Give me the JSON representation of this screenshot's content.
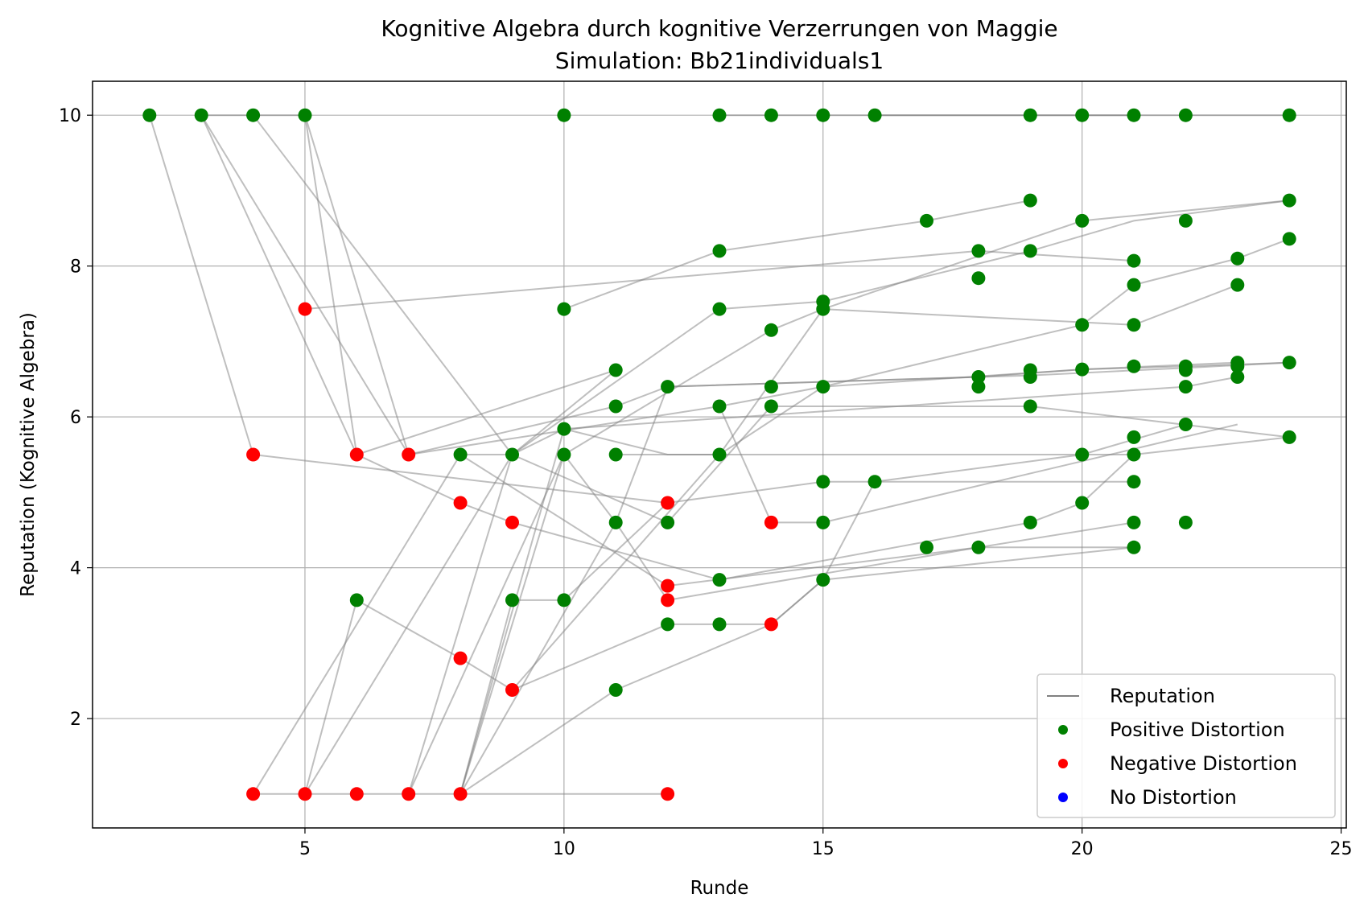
{
  "chart_data": {
    "type": "scatter",
    "title": "Kognitive Algebra durch kognitive Verzerrungen von Maggie",
    "subtitle": "Simulation: Bb21individuals1",
    "xlabel": "Runde",
    "ylabel": "Reputation (Kognitive Algebra)",
    "xlim": [
      0.9,
      25.1
    ],
    "ylim": [
      0.55,
      10.45
    ],
    "xticks": [
      5,
      10,
      15,
      20,
      25
    ],
    "yticks": [
      2,
      4,
      6,
      8,
      10
    ],
    "grid": true,
    "legend_position": "lower-right",
    "colors": {
      "line": "#808080",
      "positive": "#008000",
      "negative": "#ff0000",
      "none": "#0000ff"
    },
    "legend": [
      {
        "label": "Reputation",
        "kind": "line",
        "color": "#808080"
      },
      {
        "label": "Positive Distortion",
        "kind": "point",
        "color": "#008000"
      },
      {
        "label": "Negative Distortion",
        "kind": "point",
        "color": "#ff0000"
      },
      {
        "label": "No Distortion",
        "kind": "point",
        "color": "#0000ff"
      }
    ],
    "lines": [
      [
        [
          2,
          10
        ],
        [
          4,
          5.5
        ],
        [
          12,
          4.86
        ]
      ],
      [
        [
          3,
          10
        ],
        [
          6,
          5.5
        ],
        [
          8,
          4.86
        ],
        [
          9,
          4.6
        ]
      ],
      [
        [
          3,
          10
        ],
        [
          7,
          5.5
        ],
        [
          11,
          6.14
        ],
        [
          12,
          6.4
        ],
        [
          18,
          6.53
        ],
        [
          20,
          6.63
        ],
        [
          22,
          6.67
        ],
        [
          24,
          6.72
        ]
      ],
      [
        [
          3,
          10
        ],
        [
          5,
          10
        ],
        [
          6,
          5.5
        ],
        [
          11,
          6.62
        ]
      ],
      [
        [
          4,
          10
        ],
        [
          9,
          5.5
        ],
        [
          10,
          5.84
        ],
        [
          22,
          6.4
        ],
        [
          23,
          6.53
        ]
      ],
      [
        [
          5,
          10
        ],
        [
          7,
          5.5
        ],
        [
          13,
          6.14
        ],
        [
          14,
          4.6
        ],
        [
          15,
          4.6
        ],
        [
          23,
          5.9
        ]
      ],
      [
        [
          5,
          7.43
        ],
        [
          18,
          8.2
        ],
        [
          21,
          8.07
        ]
      ],
      [
        [
          10,
          7.43
        ],
        [
          13,
          8.2
        ],
        [
          17,
          8.6
        ],
        [
          19,
          8.87
        ]
      ],
      [
        [
          4,
          1
        ],
        [
          8,
          5.5
        ],
        [
          12,
          3.76
        ],
        [
          18,
          4.27
        ],
        [
          21,
          4.6
        ]
      ],
      [
        [
          6,
          3.57
        ],
        [
          8,
          2.8
        ],
        [
          9,
          2.38
        ],
        [
          12,
          3.25
        ],
        [
          14,
          3.25
        ],
        [
          15,
          3.84
        ],
        [
          16,
          5.14
        ],
        [
          20,
          5.5
        ],
        [
          22,
          5.9
        ]
      ],
      [
        [
          4,
          1
        ],
        [
          8,
          1
        ],
        [
          12,
          1
        ]
      ],
      [
        [
          5,
          1
        ],
        [
          6,
          3.57
        ]
      ],
      [
        [
          5,
          1
        ],
        [
          9,
          5.5
        ],
        [
          12,
          4.6
        ],
        [
          14,
          6.14
        ],
        [
          19,
          6.14
        ],
        [
          24,
          5.73
        ]
      ],
      [
        [
          7,
          1
        ],
        [
          9,
          5.5
        ],
        [
          13,
          7.43
        ],
        [
          15,
          7.53
        ],
        [
          19,
          8.2
        ],
        [
          21,
          8.6
        ],
        [
          24,
          8.87
        ]
      ],
      [
        [
          7,
          1
        ],
        [
          10,
          5.5
        ],
        [
          11,
          4.6
        ],
        [
          12,
          3.57
        ],
        [
          18,
          4.27
        ],
        [
          21,
          4.27
        ]
      ],
      [
        [
          8,
          1
        ],
        [
          10,
          5.5
        ],
        [
          14,
          7.15
        ],
        [
          15,
          7.43
        ],
        [
          20,
          8.6
        ],
        [
          24,
          8.87
        ]
      ],
      [
        [
          8,
          1
        ],
        [
          11,
          4.6
        ],
        [
          12,
          6.4
        ],
        [
          19,
          6.55
        ],
        [
          22,
          6.65
        ],
        [
          24,
          6.72
        ]
      ],
      [
        [
          8,
          1
        ],
        [
          10,
          5.84
        ],
        [
          12,
          5.5
        ],
        [
          13,
          5.5
        ],
        [
          15,
          6.4
        ],
        [
          20,
          7.22
        ],
        [
          21,
          7.75
        ],
        [
          23,
          8.1
        ],
        [
          24,
          8.36
        ]
      ],
      [
        [
          8,
          1
        ],
        [
          11,
          2.38
        ],
        [
          14,
          3.25
        ],
        [
          15,
          3.84
        ],
        [
          21,
          4.27
        ]
      ],
      [
        [
          8,
          1
        ],
        [
          9,
          3.57
        ],
        [
          10,
          3.57
        ],
        [
          12,
          4.86
        ],
        [
          15,
          5.14
        ],
        [
          21,
          5.14
        ]
      ],
      [
        [
          9,
          4.6
        ],
        [
          13,
          3.84
        ],
        [
          19,
          4.6
        ],
        [
          20,
          4.86
        ],
        [
          21,
          5.5
        ]
      ],
      [
        [
          9,
          2.38
        ],
        [
          13,
          5.5
        ],
        [
          15,
          7.43
        ],
        [
          21,
          7.22
        ],
        [
          23,
          7.75
        ]
      ],
      [
        [
          11,
          5.5
        ],
        [
          21,
          5.5
        ],
        [
          24,
          5.73
        ]
      ],
      [
        [
          13,
          6.14
        ],
        [
          15,
          6.4
        ],
        [
          20,
          6.63
        ],
        [
          23,
          6.72
        ]
      ],
      [
        [
          8,
          5.5
        ],
        [
          9,
          5.5
        ],
        [
          11,
          6.62
        ]
      ],
      [
        [
          13,
          10
        ],
        [
          24,
          10
        ]
      ],
      [
        [
          16,
          10
        ],
        [
          19,
          10
        ],
        [
          21,
          10
        ]
      ]
    ],
    "points": {
      "positive": [
        [
          2,
          10
        ],
        [
          3,
          10
        ],
        [
          4,
          10
        ],
        [
          5,
          10
        ],
        [
          10,
          10
        ],
        [
          13,
          10
        ],
        [
          14,
          10
        ],
        [
          15,
          10
        ],
        [
          16,
          10
        ],
        [
          19,
          10
        ],
        [
          20,
          10
        ],
        [
          21,
          10
        ],
        [
          22,
          10
        ],
        [
          24,
          10
        ],
        [
          17,
          8.6
        ],
        [
          19,
          8.87
        ],
        [
          20,
          8.6
        ],
        [
          22,
          8.6
        ],
        [
          24,
          8.87
        ],
        [
          13,
          8.2
        ],
        [
          18,
          8.2
        ],
        [
          19,
          8.2
        ],
        [
          21,
          8.07
        ],
        [
          23,
          8.1
        ],
        [
          24,
          8.36
        ],
        [
          18,
          7.84
        ],
        [
          21,
          7.75
        ],
        [
          23,
          7.75
        ],
        [
          10,
          7.43
        ],
        [
          13,
          7.43
        ],
        [
          15,
          7.53
        ],
        [
          15,
          7.43
        ],
        [
          14,
          7.15
        ],
        [
          20,
          7.22
        ],
        [
          21,
          7.22
        ],
        [
          11,
          6.62
        ],
        [
          12,
          6.4
        ],
        [
          14,
          6.4
        ],
        [
          15,
          6.4
        ],
        [
          18,
          6.53
        ],
        [
          18,
          6.4
        ],
        [
          19,
          6.62
        ],
        [
          19,
          6.53
        ],
        [
          20,
          6.63
        ],
        [
          21,
          6.67
        ],
        [
          22,
          6.67
        ],
        [
          22,
          6.62
        ],
        [
          23,
          6.72
        ],
        [
          23,
          6.67
        ],
        [
          23,
          6.53
        ],
        [
          24,
          6.72
        ],
        [
          22,
          6.4
        ],
        [
          11,
          6.14
        ],
        [
          13,
          6.14
        ],
        [
          14,
          6.14
        ],
        [
          19,
          6.14
        ],
        [
          10,
          5.84
        ],
        [
          22,
          5.9
        ],
        [
          24,
          5.73
        ],
        [
          21,
          5.73
        ],
        [
          8,
          5.5
        ],
        [
          9,
          5.5
        ],
        [
          10,
          5.5
        ],
        [
          11,
          5.5
        ],
        [
          13,
          5.5
        ],
        [
          20,
          5.5
        ],
        [
          21,
          5.5
        ],
        [
          15,
          5.14
        ],
        [
          16,
          5.14
        ],
        [
          21,
          5.14
        ],
        [
          20,
          4.86
        ],
        [
          11,
          4.6
        ],
        [
          12,
          4.6
        ],
        [
          15,
          4.6
        ],
        [
          19,
          4.6
        ],
        [
          21,
          4.6
        ],
        [
          22,
          4.6
        ],
        [
          17,
          4.27
        ],
        [
          18,
          4.27
        ],
        [
          21,
          4.27
        ],
        [
          13,
          3.84
        ],
        [
          15,
          3.84
        ],
        [
          6,
          3.57
        ],
        [
          9,
          3.57
        ],
        [
          10,
          3.57
        ],
        [
          12,
          3.25
        ],
        [
          13,
          3.25
        ],
        [
          11,
          2.38
        ]
      ],
      "negative": [
        [
          5,
          7.43
        ],
        [
          4,
          5.5
        ],
        [
          6,
          5.5
        ],
        [
          7,
          5.5
        ],
        [
          8,
          4.86
        ],
        [
          12,
          4.86
        ],
        [
          9,
          4.6
        ],
        [
          14,
          4.6
        ],
        [
          12,
          3.76
        ],
        [
          12,
          3.57
        ],
        [
          14,
          3.25
        ],
        [
          8,
          2.8
        ],
        [
          9,
          2.38
        ],
        [
          4,
          1
        ],
        [
          5,
          1
        ],
        [
          6,
          1
        ],
        [
          7,
          1
        ],
        [
          8,
          1
        ],
        [
          12,
          1
        ]
      ],
      "none": []
    }
  }
}
